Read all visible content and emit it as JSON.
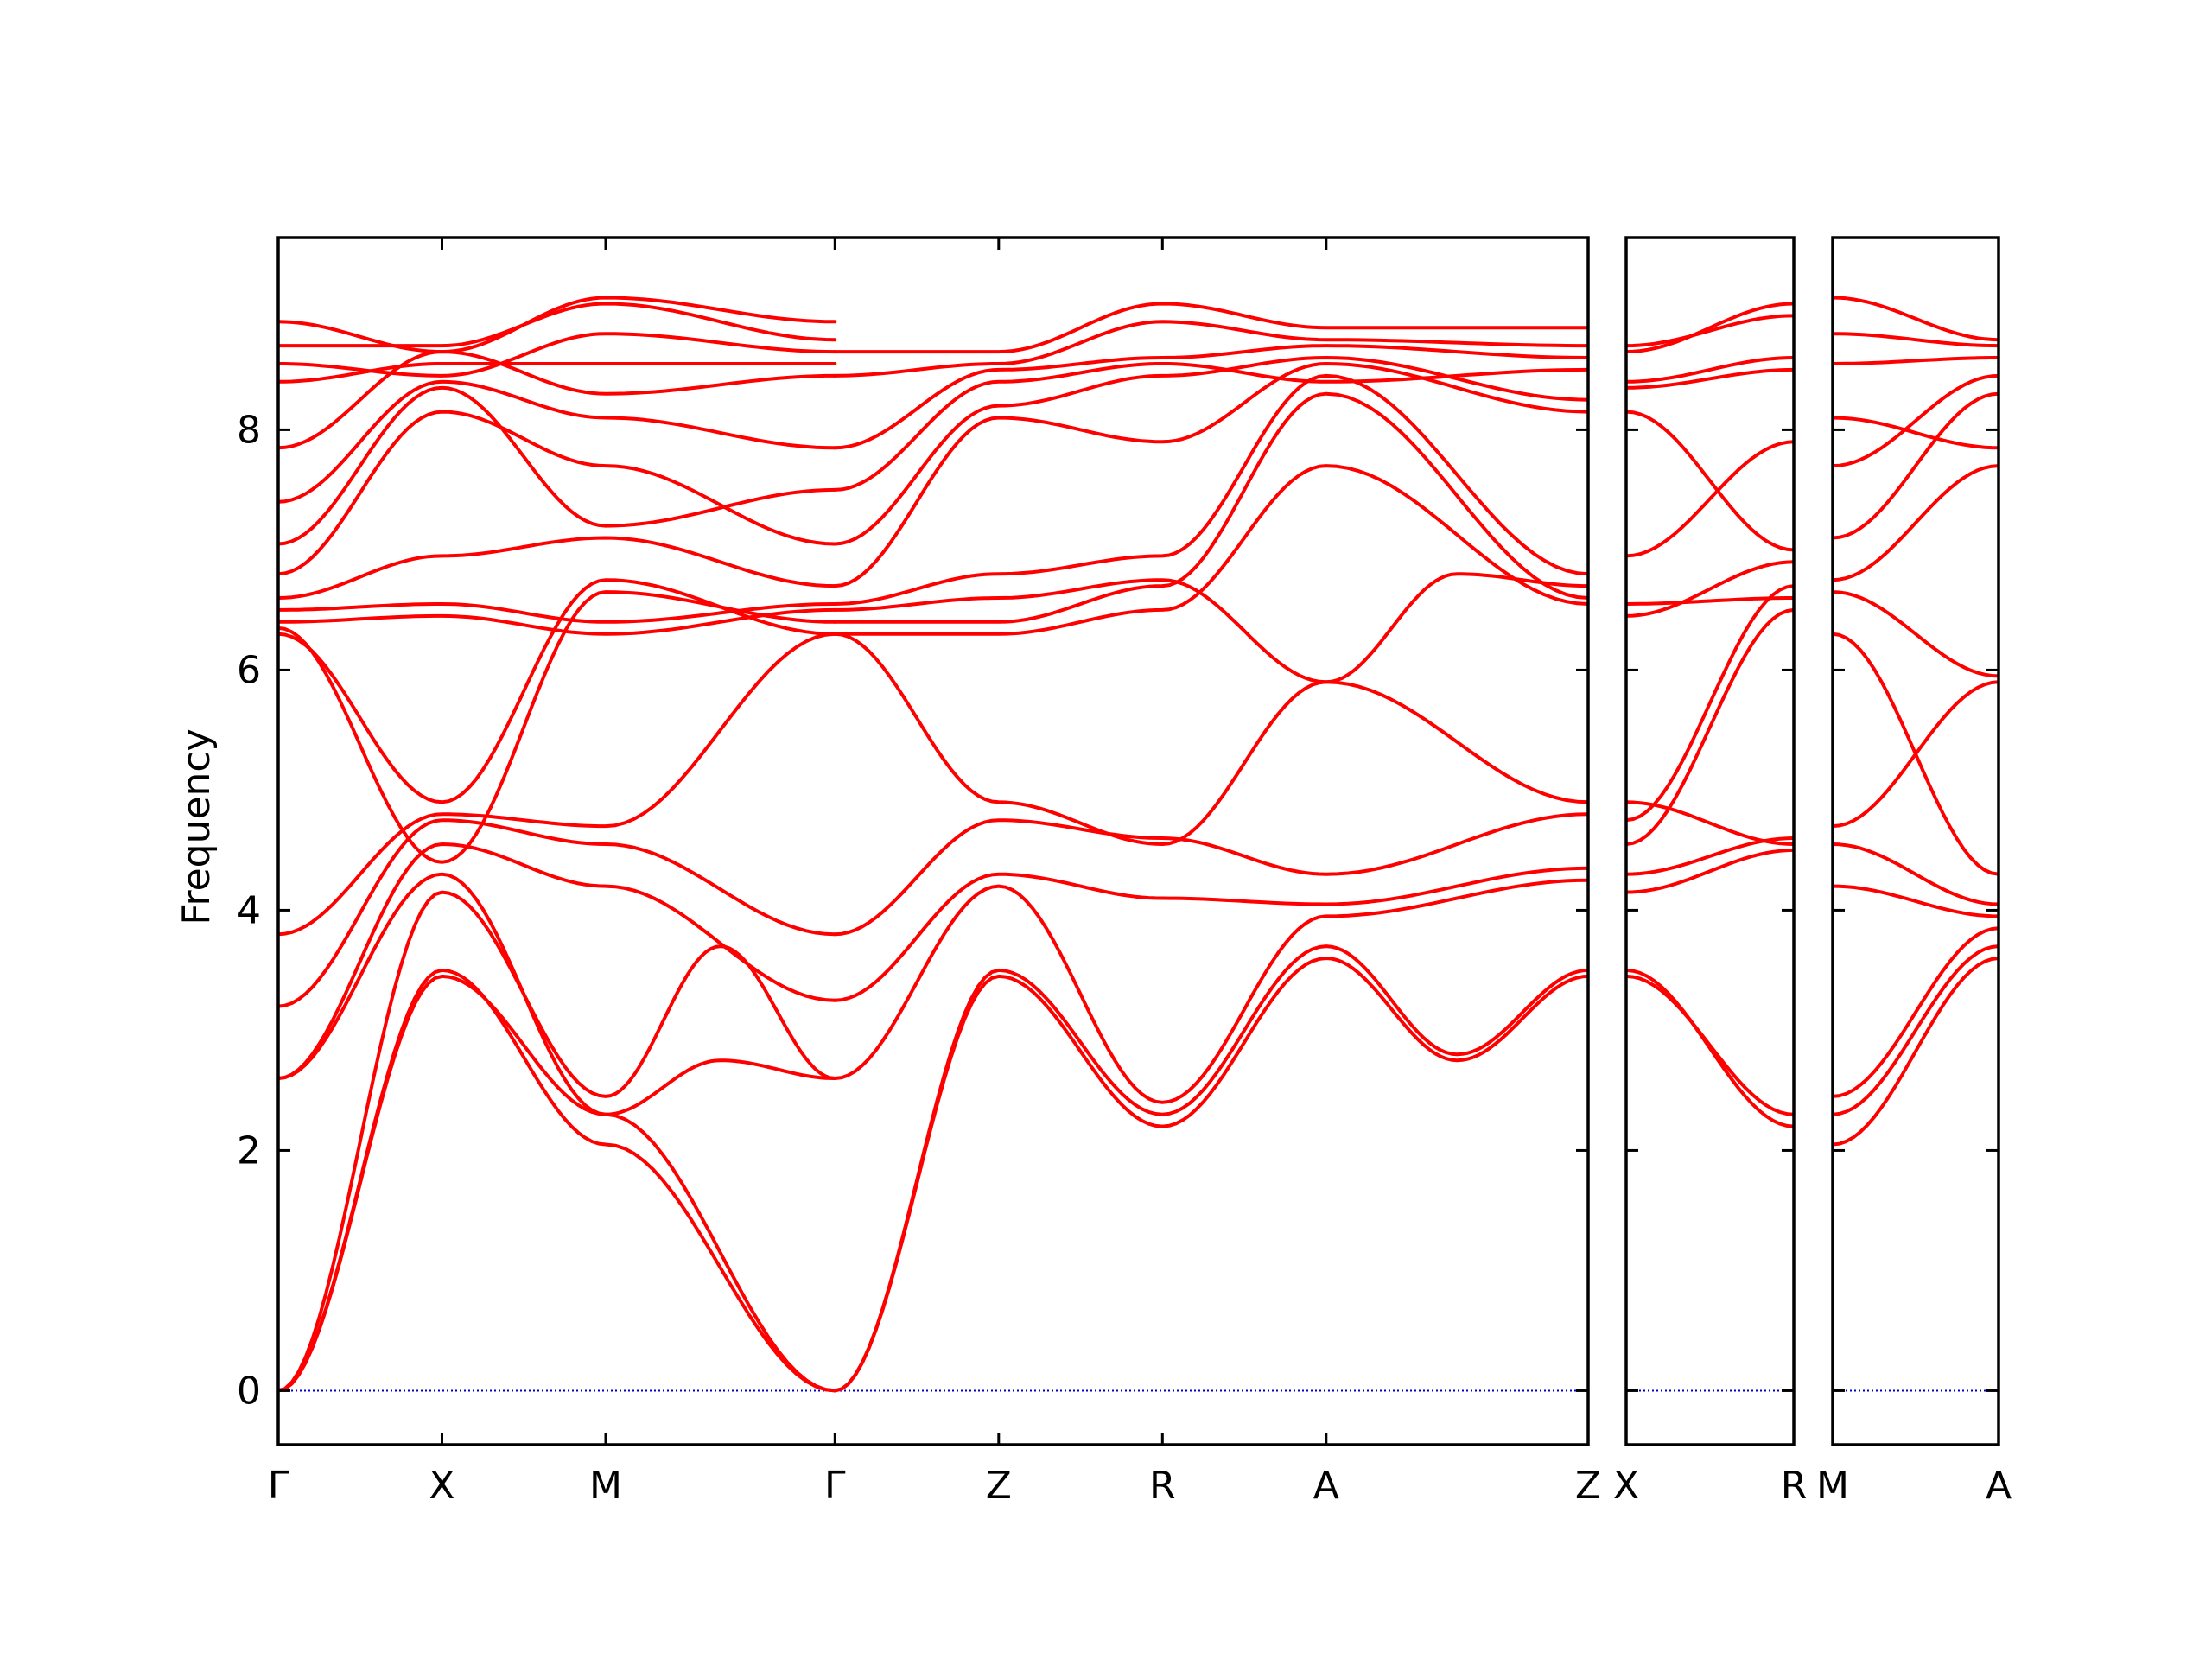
{
  "chart_data": {
    "type": "line",
    "title": "",
    "xlabel": "",
    "ylabel": "Frequency",
    "ylim": [
      -0.45,
      9.6
    ],
    "yticks": [
      0,
      2,
      4,
      6,
      8
    ],
    "grid": false,
    "legend": "none",
    "line_color": "#ff0000",
    "zero_line_color": "#0000cc",
    "panels": [
      {
        "name": "panel-1",
        "x_labels": [
          "Γ",
          "X",
          "M",
          "Γ",
          "Z",
          "R",
          "A",
          "Z"
        ],
        "x_positions": [
          0,
          1,
          2,
          3.4,
          4.4,
          5.4,
          6.4,
          8.0
        ],
        "xlim": [
          0,
          8.0
        ]
      },
      {
        "name": "panel-2",
        "x_labels": [
          "X",
          "R"
        ],
        "x_positions": [
          0,
          1
        ],
        "xlim": [
          0,
          1
        ]
      },
      {
        "name": "panel-3",
        "x_labels": [
          "M",
          "A"
        ],
        "x_positions": [
          0,
          1
        ],
        "xlim": [
          0,
          1
        ]
      }
    ],
    "series": [
      {
        "panel": 0,
        "x": [
          0,
          1,
          2,
          3.4
        ],
        "y": [
          0.0,
          3.5,
          2.05,
          0.0
        ]
      },
      {
        "panel": 0,
        "x": [
          0,
          1,
          2,
          3.4
        ],
        "y": [
          0.0,
          3.45,
          2.3,
          0.0
        ]
      },
      {
        "panel": 0,
        "x": [
          0,
          1,
          2,
          2.7,
          3.4
        ],
        "y": [
          0.0,
          4.15,
          2.45,
          3.7,
          2.6
        ]
      },
      {
        "panel": 0,
        "x": [
          0,
          1,
          2,
          2.7,
          3.4
        ],
        "y": [
          2.6,
          4.3,
          2.3,
          2.75,
          2.6
        ]
      },
      {
        "panel": 0,
        "x": [
          0,
          1,
          2,
          3.4
        ],
        "y": [
          2.6,
          4.55,
          4.2,
          3.25
        ]
      },
      {
        "panel": 0,
        "x": [
          0,
          1,
          2,
          3.4
        ],
        "y": [
          3.2,
          4.75,
          4.55,
          3.8
        ]
      },
      {
        "panel": 0,
        "x": [
          0,
          1,
          2,
          3.4
        ],
        "y": [
          3.8,
          4.8,
          4.7,
          6.3
        ]
      },
      {
        "panel": 0,
        "x": [
          0,
          1,
          2,
          3.4
        ],
        "y": [
          6.3,
          4.9,
          6.75,
          6.3
        ]
      },
      {
        "panel": 0,
        "x": [
          0,
          1,
          2,
          3.4
        ],
        "y": [
          6.35,
          4.4,
          6.65,
          6.4
        ]
      },
      {
        "panel": 0,
        "x": [
          0,
          1,
          2,
          3.4
        ],
        "y": [
          6.4,
          6.45,
          6.3,
          6.5
        ]
      },
      {
        "panel": 0,
        "x": [
          0,
          1,
          2,
          3.4
        ],
        "y": [
          6.5,
          6.55,
          6.4,
          6.55
        ]
      },
      {
        "panel": 0,
        "x": [
          0,
          1,
          2,
          3.4
        ],
        "y": [
          6.6,
          6.95,
          7.1,
          6.7
        ]
      },
      {
        "panel": 0,
        "x": [
          0,
          1,
          2,
          3.4
        ],
        "y": [
          6.8,
          8.15,
          7.7,
          7.05
        ]
      },
      {
        "panel": 0,
        "x": [
          0,
          1,
          2,
          3.4
        ],
        "y": [
          7.05,
          8.35,
          7.2,
          7.5
        ]
      },
      {
        "panel": 0,
        "x": [
          0,
          1,
          2,
          3.4
        ],
        "y": [
          7.4,
          8.4,
          8.1,
          7.85
        ]
      },
      {
        "panel": 0,
        "x": [
          0,
          1,
          2,
          3.4
        ],
        "y": [
          7.85,
          8.65,
          8.3,
          8.45
        ]
      },
      {
        "panel": 0,
        "x": [
          0,
          1,
          2,
          3.4
        ],
        "y": [
          8.4,
          8.55,
          8.55,
          8.55
        ]
      },
      {
        "panel": 0,
        "x": [
          0,
          1,
          2,
          3.4
        ],
        "y": [
          8.55,
          8.45,
          8.8,
          8.65
        ]
      },
      {
        "panel": 0,
        "x": [
          0,
          1,
          2,
          3.4
        ],
        "y": [
          8.7,
          8.7,
          9.05,
          8.75
        ]
      },
      {
        "panel": 0,
        "x": [
          0,
          1,
          2,
          3.4
        ],
        "y": [
          8.9,
          8.65,
          9.1,
          8.9
        ]
      },
      {
        "panel": 0,
        "x": [
          3.4,
          4.4,
          5.4,
          6.4,
          7.2,
          8.0
        ],
        "y": [
          0.0,
          3.45,
          2.2,
          3.6,
          2.75,
          3.45
        ]
      },
      {
        "panel": 0,
        "x": [
          3.4,
          4.4,
          5.4,
          6.4,
          7.2,
          8.0
        ],
        "y": [
          0.0,
          3.5,
          2.3,
          3.7,
          2.8,
          3.5
        ]
      },
      {
        "panel": 0,
        "x": [
          3.4,
          4.4,
          5.4,
          6.4,
          8.0
        ],
        "y": [
          2.6,
          4.2,
          2.4,
          3.95,
          4.25
        ]
      },
      {
        "panel": 0,
        "x": [
          3.4,
          4.4,
          5.4,
          6.4,
          8.0
        ],
        "y": [
          3.25,
          4.3,
          4.1,
          4.05,
          4.35
        ]
      },
      {
        "panel": 0,
        "x": [
          3.4,
          4.4,
          5.4,
          6.4,
          8.0
        ],
        "y": [
          3.8,
          4.75,
          4.6,
          4.3,
          4.8
        ]
      },
      {
        "panel": 0,
        "x": [
          3.4,
          4.4,
          5.4,
          6.4,
          8.0
        ],
        "y": [
          6.3,
          4.9,
          4.55,
          5.9,
          4.9
        ]
      },
      {
        "panel": 0,
        "x": [
          3.4,
          4.4,
          5.4,
          6.4,
          8.0
        ],
        "y": [
          6.3,
          6.3,
          6.5,
          7.7,
          6.55
        ]
      },
      {
        "panel": 0,
        "x": [
          3.4,
          4.4,
          5.4,
          6.4,
          8.0
        ],
        "y": [
          6.4,
          6.4,
          6.7,
          8.3,
          6.6
        ]
      },
      {
        "panel": 0,
        "x": [
          3.4,
          4.4,
          5.4,
          6.4,
          7.2,
          8.0
        ],
        "y": [
          6.5,
          6.6,
          6.75,
          5.9,
          6.8,
          6.7
        ]
      },
      {
        "panel": 0,
        "x": [
          3.4,
          4.4,
          5.4,
          6.4,
          8.0
        ],
        "y": [
          6.55,
          6.8,
          6.95,
          8.45,
          6.8
        ]
      },
      {
        "panel": 0,
        "x": [
          3.4,
          4.4,
          5.4,
          6.4,
          8.0
        ],
        "y": [
          6.7,
          8.1,
          7.9,
          8.55,
          8.15
        ]
      },
      {
        "panel": 0,
        "x": [
          3.4,
          4.4,
          5.4,
          6.4,
          8.0
        ],
        "y": [
          7.05,
          8.2,
          8.45,
          8.6,
          8.25
        ]
      },
      {
        "panel": 0,
        "x": [
          3.4,
          4.4,
          5.4,
          6.4,
          8.0
        ],
        "y": [
          7.5,
          8.4,
          8.55,
          8.4,
          8.5
        ]
      },
      {
        "panel": 0,
        "x": [
          3.4,
          4.4,
          5.4,
          6.4,
          8.0
        ],
        "y": [
          7.85,
          8.5,
          8.6,
          8.7,
          8.6
        ]
      },
      {
        "panel": 0,
        "x": [
          3.4,
          4.4,
          5.4,
          6.4,
          8.0
        ],
        "y": [
          8.45,
          8.55,
          8.9,
          8.75,
          8.7
        ]
      },
      {
        "panel": 0,
        "x": [
          3.4,
          4.4,
          5.4,
          6.4,
          8.0
        ],
        "y": [
          8.65,
          8.65,
          9.05,
          8.85,
          8.85
        ]
      },
      {
        "panel": 1,
        "x": [
          0,
          1
        ],
        "y": [
          3.5,
          2.2
        ]
      },
      {
        "panel": 1,
        "x": [
          0,
          1
        ],
        "y": [
          3.45,
          2.3
        ]
      },
      {
        "panel": 1,
        "x": [
          0,
          1
        ],
        "y": [
          4.15,
          4.5
        ]
      },
      {
        "panel": 1,
        "x": [
          0,
          1
        ],
        "y": [
          4.3,
          4.6
        ]
      },
      {
        "panel": 1,
        "x": [
          0,
          1
        ],
        "y": [
          4.55,
          6.5
        ]
      },
      {
        "panel": 1,
        "x": [
          0,
          1
        ],
        "y": [
          4.75,
          6.7
        ]
      },
      {
        "panel": 1,
        "x": [
          0,
          1
        ],
        "y": [
          4.9,
          4.55
        ]
      },
      {
        "panel": 1,
        "x": [
          0,
          1
        ],
        "y": [
          6.45,
          6.9
        ]
      },
      {
        "panel": 1,
        "x": [
          0,
          1
        ],
        "y": [
          6.55,
          6.6
        ]
      },
      {
        "panel": 1,
        "x": [
          0,
          1
        ],
        "y": [
          6.95,
          7.9
        ]
      },
      {
        "panel": 1,
        "x": [
          0,
          1
        ],
        "y": [
          8.15,
          7.0
        ]
      },
      {
        "panel": 1,
        "x": [
          0,
          1
        ],
        "y": [
          8.35,
          8.5
        ]
      },
      {
        "panel": 1,
        "x": [
          0,
          1
        ],
        "y": [
          8.4,
          8.6
        ]
      },
      {
        "panel": 1,
        "x": [
          0,
          1
        ],
        "y": [
          8.65,
          9.05
        ]
      },
      {
        "panel": 1,
        "x": [
          0,
          1
        ],
        "y": [
          8.7,
          8.95
        ]
      },
      {
        "panel": 2,
        "x": [
          0,
          1
        ],
        "y": [
          2.05,
          3.6
        ]
      },
      {
        "panel": 2,
        "x": [
          0,
          1
        ],
        "y": [
          2.3,
          3.7
        ]
      },
      {
        "panel": 2,
        "x": [
          0,
          1
        ],
        "y": [
          2.45,
          3.85
        ]
      },
      {
        "panel": 2,
        "x": [
          0,
          1
        ],
        "y": [
          4.2,
          3.95
        ]
      },
      {
        "panel": 2,
        "x": [
          0,
          1
        ],
        "y": [
          4.55,
          4.05
        ]
      },
      {
        "panel": 2,
        "x": [
          0,
          1
        ],
        "y": [
          4.7,
          5.9
        ]
      },
      {
        "panel": 2,
        "x": [
          0,
          1
        ],
        "y": [
          6.3,
          4.3
        ]
      },
      {
        "panel": 2,
        "x": [
          0,
          1
        ],
        "y": [
          6.65,
          5.95
        ]
      },
      {
        "panel": 2,
        "x": [
          0,
          1
        ],
        "y": [
          6.75,
          7.7
        ]
      },
      {
        "panel": 2,
        "x": [
          0,
          1
        ],
        "y": [
          7.1,
          8.3
        ]
      },
      {
        "panel": 2,
        "x": [
          0,
          1
        ],
        "y": [
          7.7,
          8.45
        ]
      },
      {
        "panel": 2,
        "x": [
          0,
          1
        ],
        "y": [
          8.1,
          7.85
        ]
      },
      {
        "panel": 2,
        "x": [
          0,
          1
        ],
        "y": [
          8.55,
          8.6
        ]
      },
      {
        "panel": 2,
        "x": [
          0,
          1
        ],
        "y": [
          8.8,
          8.7
        ]
      },
      {
        "panel": 2,
        "x": [
          0,
          1
        ],
        "y": [
          9.1,
          8.75
        ]
      }
    ]
  }
}
